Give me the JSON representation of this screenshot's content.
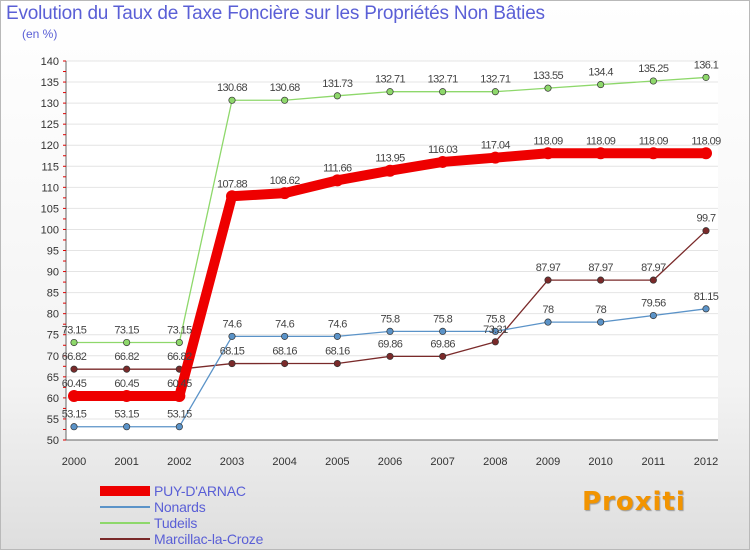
{
  "chart_data": {
    "type": "line",
    "title": "Evolution du Taux de Taxe Foncière sur les Propriétés Non Bâties",
    "ylabel": "(en %)",
    "xlabel": "",
    "categories": [
      "2000",
      "2001",
      "2002",
      "2003",
      "2004",
      "2005",
      "2006",
      "2007",
      "2008",
      "2009",
      "2010",
      "2011",
      "2012"
    ],
    "ylim": [
      50,
      140
    ],
    "yticks": [
      50,
      55,
      60,
      65,
      70,
      75,
      80,
      85,
      90,
      95,
      100,
      105,
      110,
      115,
      120,
      125,
      130,
      135,
      140
    ],
    "series": [
      {
        "name": "PUY-D'ARNAC",
        "color": "#ee0000",
        "values": [
          60.45,
          60.45,
          60.45,
          107.88,
          108.62,
          111.66,
          113.95,
          116.03,
          117.04,
          118.09,
          118.09,
          118.09,
          118.09
        ],
        "labels": [
          "60.45",
          "60.45",
          "60.45",
          "107.88",
          "108.62",
          "111.66",
          "113.95",
          "116.03",
          "117.04",
          "118.09",
          "118.09",
          "118.09",
          "118.09"
        ]
      },
      {
        "name": "Nonards",
        "color": "#5b93c8",
        "values": [
          53.15,
          53.15,
          53.15,
          74.6,
          74.6,
          74.6,
          75.8,
          75.8,
          75.8,
          78,
          78,
          79.56,
          81.15
        ],
        "labels": [
          "53.15",
          "53.15",
          "53.15",
          "74.6",
          "74.6",
          "74.6",
          "75.8",
          "75.8",
          "75.8",
          "78",
          "78",
          "79.56",
          "81.15"
        ]
      },
      {
        "name": "Tudeils",
        "color": "#8ed86b",
        "values": [
          73.15,
          73.15,
          73.15,
          130.68,
          130.68,
          131.73,
          132.71,
          132.71,
          132.71,
          133.55,
          134.4,
          135.25,
          136.1
        ],
        "labels": [
          "73.15",
          "73.15",
          "73.15",
          "130.68",
          "130.68",
          "131.73",
          "132.71",
          "132.71",
          "132.71",
          "133.55",
          "134.4",
          "135.25",
          "136.1"
        ]
      },
      {
        "name": "Marcillac-la-Croze",
        "color": "#7a2a2a",
        "values": [
          66.82,
          66.82,
          66.82,
          68.15,
          68.16,
          68.16,
          69.86,
          69.86,
          73.31,
          87.97,
          87.97,
          87.97,
          99.7
        ],
        "labels": [
          "66.82",
          "66.82",
          "66.82",
          "68.15",
          "68.16",
          "68.16",
          "69.86",
          "69.86",
          "73.31",
          "87.97",
          "87.97",
          "87.97",
          "99.7"
        ]
      }
    ]
  },
  "logo": {
    "text": "Proxiti"
  }
}
